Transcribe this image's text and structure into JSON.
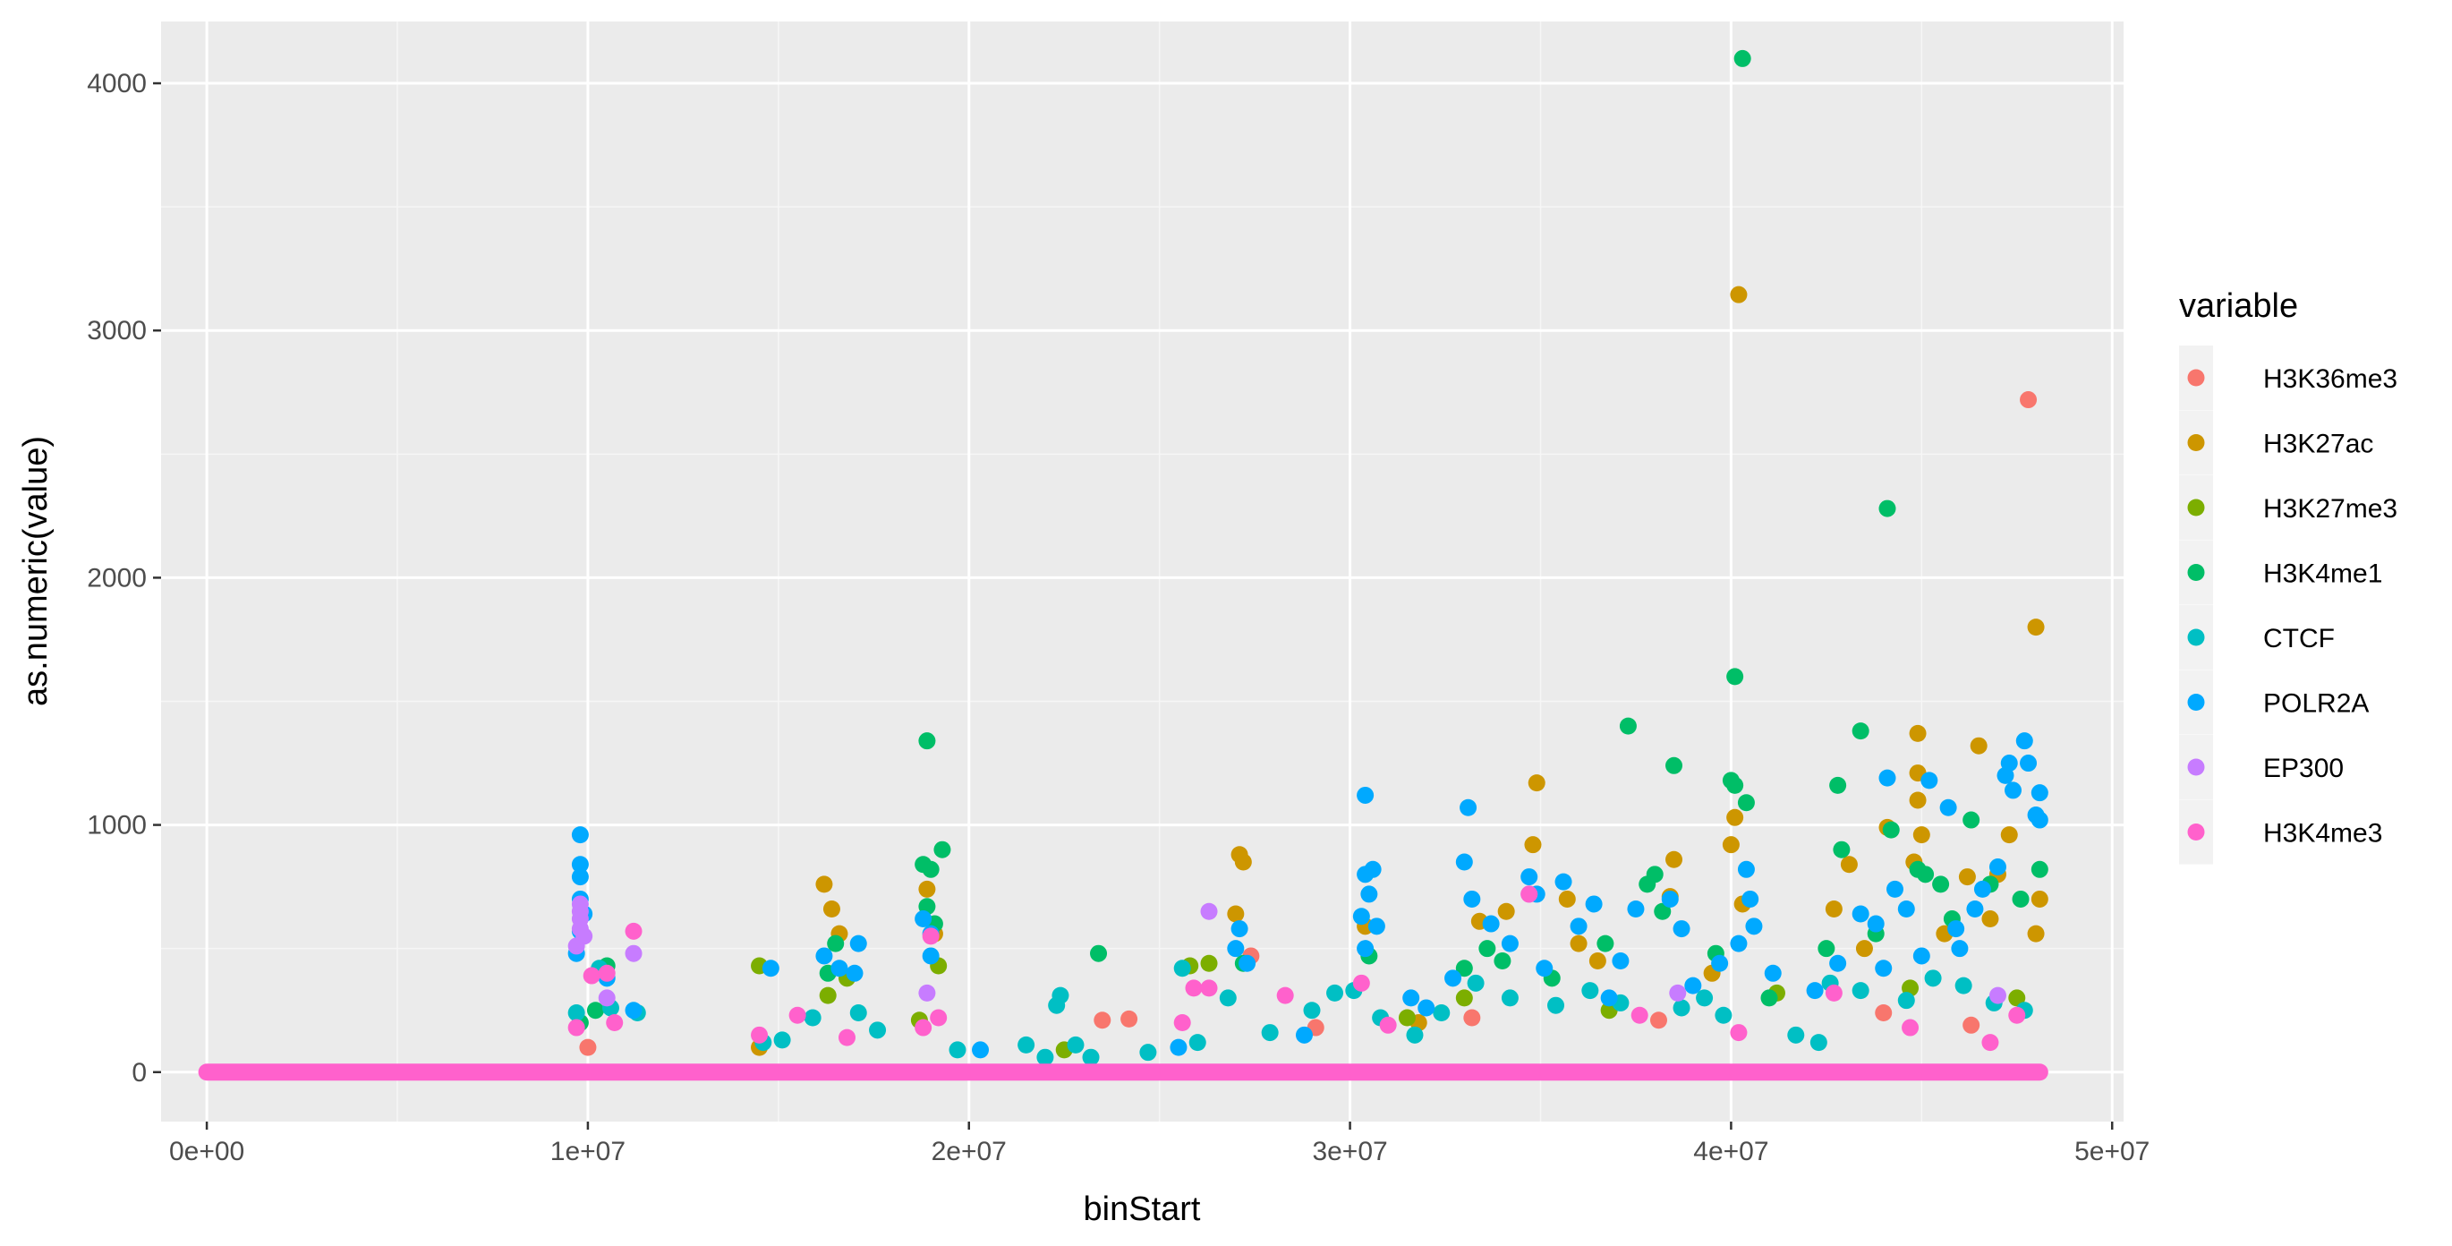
{
  "chart_data": {
    "type": "scatter",
    "title": "",
    "xlabel": "binStart",
    "ylabel": "as.numeric(value)",
    "xlim": [
      -1200000,
      50300000
    ],
    "ylim": [
      -200,
      4250
    ],
    "x_ticks": [
      0,
      10000000,
      20000000,
      30000000,
      40000000,
      50000000
    ],
    "x_tick_labels": [
      "0e+00",
      "1e+07",
      "2e+07",
      "3e+07",
      "4e+07",
      "5e+07"
    ],
    "y_ticks": [
      0,
      1000,
      2000,
      3000,
      4000
    ],
    "y_tick_labels": [
      "0",
      "1000",
      "2000",
      "3000",
      "4000"
    ],
    "grid": true,
    "legend": {
      "title": "variable",
      "position": "right",
      "entries": [
        "H3K36me3",
        "H3K27ac",
        "H3K27me3",
        "H3K4me1",
        "CTCF",
        "POLR2A",
        "EP300",
        "H3K4me3"
      ]
    },
    "series": [
      {
        "name": "H3K36me3",
        "color": "#F8766D",
        "points": [
          [
            10000000,
            100
          ],
          [
            23500000,
            210
          ],
          [
            24200000,
            215
          ],
          [
            27400000,
            470
          ],
          [
            29100000,
            180
          ],
          [
            33200000,
            220
          ],
          [
            38100000,
            210
          ],
          [
            44000000,
            240
          ],
          [
            46300000,
            190
          ],
          [
            47800000,
            2720
          ]
        ]
      },
      {
        "name": "H3K27ac",
        "color": "#CD9600",
        "points": [
          [
            14500000,
            100
          ],
          [
            16200000,
            760
          ],
          [
            16400000,
            660
          ],
          [
            16600000,
            560
          ],
          [
            18900000,
            740
          ],
          [
            19100000,
            560
          ],
          [
            27100000,
            880
          ],
          [
            27200000,
            850
          ],
          [
            27000000,
            640
          ],
          [
            30400000,
            590
          ],
          [
            33400000,
            610
          ],
          [
            34100000,
            650
          ],
          [
            34900000,
            1170
          ],
          [
            34800000,
            920
          ],
          [
            35700000,
            700
          ],
          [
            36000000,
            520
          ],
          [
            38500000,
            860
          ],
          [
            38400000,
            710
          ],
          [
            40200000,
            3145
          ],
          [
            40100000,
            1030
          ],
          [
            40000000,
            920
          ],
          [
            40300000,
            680
          ],
          [
            42700000,
            660
          ],
          [
            43100000,
            840
          ],
          [
            44100000,
            990
          ],
          [
            44900000,
            1370
          ],
          [
            44900000,
            1210
          ],
          [
            44900000,
            1100
          ],
          [
            45000000,
            960
          ],
          [
            44800000,
            850
          ],
          [
            46200000,
            790
          ],
          [
            46500000,
            1320
          ],
          [
            47300000,
            960
          ],
          [
            47000000,
            800
          ],
          [
            48000000,
            1800
          ],
          [
            48100000,
            700
          ],
          [
            48000000,
            560
          ],
          [
            43500000,
            500
          ],
          [
            45600000,
            560
          ],
          [
            46800000,
            620
          ],
          [
            31800000,
            200
          ],
          [
            36500000,
            450
          ],
          [
            39500000,
            400
          ]
        ]
      },
      {
        "name": "H3K27me3",
        "color": "#7CAE00",
        "points": [
          [
            14500000,
            430
          ],
          [
            16300000,
            310
          ],
          [
            16800000,
            380
          ],
          [
            18700000,
            210
          ],
          [
            19200000,
            430
          ],
          [
            25800000,
            430
          ],
          [
            26300000,
            440
          ],
          [
            22500000,
            90
          ],
          [
            31500000,
            220
          ],
          [
            33000000,
            300
          ],
          [
            36800000,
            250
          ],
          [
            41200000,
            320
          ],
          [
            44700000,
            340
          ],
          [
            47500000,
            300
          ]
        ]
      },
      {
        "name": "H3K4me1",
        "color": "#00BE67",
        "points": [
          [
            9800000,
            200
          ],
          [
            10200000,
            250
          ],
          [
            10500000,
            430
          ],
          [
            16300000,
            400
          ],
          [
            16500000,
            520
          ],
          [
            18900000,
            1340
          ],
          [
            18800000,
            840
          ],
          [
            19000000,
            820
          ],
          [
            19300000,
            900
          ],
          [
            18900000,
            670
          ],
          [
            19100000,
            600
          ],
          [
            23400000,
            480
          ],
          [
            27200000,
            440
          ],
          [
            30500000,
            470
          ],
          [
            33000000,
            420
          ],
          [
            33600000,
            500
          ],
          [
            35300000,
            380
          ],
          [
            37300000,
            1400
          ],
          [
            38500000,
            1240
          ],
          [
            38000000,
            800
          ],
          [
            37800000,
            760
          ],
          [
            38200000,
            650
          ],
          [
            40100000,
            1600
          ],
          [
            40000000,
            1180
          ],
          [
            40100000,
            1160
          ],
          [
            40400000,
            1090
          ],
          [
            40300000,
            4100
          ],
          [
            42800000,
            1160
          ],
          [
            42900000,
            900
          ],
          [
            43400000,
            1380
          ],
          [
            44100000,
            2280
          ],
          [
            44200000,
            980
          ],
          [
            44900000,
            820
          ],
          [
            45100000,
            800
          ],
          [
            45500000,
            760
          ],
          [
            46300000,
            1020
          ],
          [
            46800000,
            760
          ],
          [
            48100000,
            820
          ],
          [
            47600000,
            700
          ],
          [
            42500000,
            500
          ],
          [
            43800000,
            560
          ],
          [
            45800000,
            620
          ],
          [
            36700000,
            520
          ],
          [
            34000000,
            450
          ],
          [
            39600000,
            480
          ],
          [
            41000000,
            300
          ]
        ]
      },
      {
        "name": "CTCF",
        "color": "#00BFC4",
        "points": [
          [
            9700000,
            240
          ],
          [
            10300000,
            420
          ],
          [
            10600000,
            260
          ],
          [
            11300000,
            240
          ],
          [
            14600000,
            120
          ],
          [
            15100000,
            130
          ],
          [
            15900000,
            220
          ],
          [
            17100000,
            240
          ],
          [
            17600000,
            170
          ],
          [
            19700000,
            90
          ],
          [
            21500000,
            110
          ],
          [
            22000000,
            60
          ],
          [
            22400000,
            310
          ],
          [
            22300000,
            270
          ],
          [
            22800000,
            110
          ],
          [
            23200000,
            60
          ],
          [
            24700000,
            80
          ],
          [
            25600000,
            420
          ],
          [
            26000000,
            120
          ],
          [
            26800000,
            300
          ],
          [
            27900000,
            160
          ],
          [
            29000000,
            250
          ],
          [
            29600000,
            320
          ],
          [
            30100000,
            330
          ],
          [
            30800000,
            220
          ],
          [
            31700000,
            150
          ],
          [
            32400000,
            240
          ],
          [
            33300000,
            360
          ],
          [
            34200000,
            300
          ],
          [
            35400000,
            270
          ],
          [
            36300000,
            330
          ],
          [
            37100000,
            280
          ],
          [
            38700000,
            260
          ],
          [
            39300000,
            300
          ],
          [
            39800000,
            230
          ],
          [
            41700000,
            150
          ],
          [
            42300000,
            120
          ],
          [
            42600000,
            360
          ],
          [
            43400000,
            330
          ],
          [
            44600000,
            290
          ],
          [
            45300000,
            380
          ],
          [
            46100000,
            350
          ],
          [
            46900000,
            280
          ],
          [
            47700000,
            250
          ]
        ]
      },
      {
        "name": "POLR2A",
        "color": "#00A9FF",
        "points": [
          [
            9800000,
            960
          ],
          [
            9800000,
            840
          ],
          [
            9800000,
            790
          ],
          [
            9800000,
            700
          ],
          [
            9900000,
            640
          ],
          [
            9800000,
            570
          ],
          [
            9700000,
            480
          ],
          [
            10500000,
            380
          ],
          [
            11200000,
            250
          ],
          [
            14800000,
            420
          ],
          [
            16200000,
            470
          ],
          [
            16600000,
            420
          ],
          [
            17100000,
            520
          ],
          [
            17000000,
            400
          ],
          [
            18800000,
            620
          ],
          [
            19000000,
            560
          ],
          [
            19000000,
            470
          ],
          [
            27100000,
            580
          ],
          [
            27000000,
            500
          ],
          [
            27300000,
            440
          ],
          [
            30300000,
            630
          ],
          [
            30400000,
            800
          ],
          [
            30600000,
            820
          ],
          [
            30400000,
            1120
          ],
          [
            30500000,
            720
          ],
          [
            30700000,
            590
          ],
          [
            30400000,
            500
          ],
          [
            31600000,
            300
          ],
          [
            32000000,
            260
          ],
          [
            33100000,
            1070
          ],
          [
            33000000,
            850
          ],
          [
            33200000,
            700
          ],
          [
            33700000,
            600
          ],
          [
            34200000,
            520
          ],
          [
            34700000,
            790
          ],
          [
            34900000,
            720
          ],
          [
            35600000,
            770
          ],
          [
            36000000,
            590
          ],
          [
            36400000,
            680
          ],
          [
            37100000,
            450
          ],
          [
            37500000,
            660
          ],
          [
            38400000,
            700
          ],
          [
            38700000,
            580
          ],
          [
            39700000,
            440
          ],
          [
            40400000,
            820
          ],
          [
            40500000,
            700
          ],
          [
            40600000,
            590
          ],
          [
            40200000,
            520
          ],
          [
            41100000,
            400
          ],
          [
            42800000,
            440
          ],
          [
            43400000,
            640
          ],
          [
            43800000,
            600
          ],
          [
            44100000,
            1190
          ],
          [
            44300000,
            740
          ],
          [
            44600000,
            660
          ],
          [
            45200000,
            1180
          ],
          [
            45700000,
            1070
          ],
          [
            45900000,
            580
          ],
          [
            46400000,
            660
          ],
          [
            46600000,
            740
          ],
          [
            47000000,
            830
          ],
          [
            47200000,
            1200
          ],
          [
            47300000,
            1250
          ],
          [
            47400000,
            1140
          ],
          [
            47700000,
            1340
          ],
          [
            47800000,
            1250
          ],
          [
            48000000,
            1040
          ],
          [
            48100000,
            1130
          ],
          [
            48100000,
            1020
          ],
          [
            46000000,
            500
          ],
          [
            45000000,
            470
          ],
          [
            44000000,
            420
          ],
          [
            42200000,
            330
          ],
          [
            39000000,
            350
          ],
          [
            36800000,
            300
          ],
          [
            35100000,
            420
          ],
          [
            32700000,
            380
          ],
          [
            28800000,
            150
          ],
          [
            25500000,
            100
          ],
          [
            20300000,
            90
          ]
        ]
      },
      {
        "name": "EP300",
        "color": "#C77CFF",
        "points": [
          [
            9800000,
            680
          ],
          [
            9800000,
            650
          ],
          [
            9800000,
            620
          ],
          [
            9800000,
            580
          ],
          [
            9900000,
            550
          ],
          [
            9700000,
            510
          ],
          [
            10500000,
            300
          ],
          [
            11200000,
            480
          ],
          [
            18900000,
            320
          ],
          [
            26300000,
            650
          ],
          [
            34700000,
            720
          ],
          [
            38600000,
            320
          ],
          [
            47000000,
            310
          ]
        ]
      },
      {
        "name": "H3K4me3",
        "color": "#FF61CC",
        "points": [
          [
            9700000,
            180
          ],
          [
            10100000,
            390
          ],
          [
            10500000,
            400
          ],
          [
            11200000,
            570
          ],
          [
            10700000,
            200
          ],
          [
            14500000,
            150
          ],
          [
            15500000,
            230
          ],
          [
            16800000,
            140
          ],
          [
            18800000,
            180
          ],
          [
            19000000,
            550
          ],
          [
            19200000,
            220
          ],
          [
            25600000,
            200
          ],
          [
            25900000,
            340
          ],
          [
            26300000,
            340
          ],
          [
            28300000,
            310
          ],
          [
            30300000,
            360
          ],
          [
            31000000,
            190
          ],
          [
            34700000,
            720
          ],
          [
            37600000,
            230
          ],
          [
            40200000,
            160
          ],
          [
            42700000,
            320
          ],
          [
            44700000,
            180
          ],
          [
            46800000,
            120
          ],
          [
            47500000,
            230
          ]
        ]
      }
    ]
  }
}
